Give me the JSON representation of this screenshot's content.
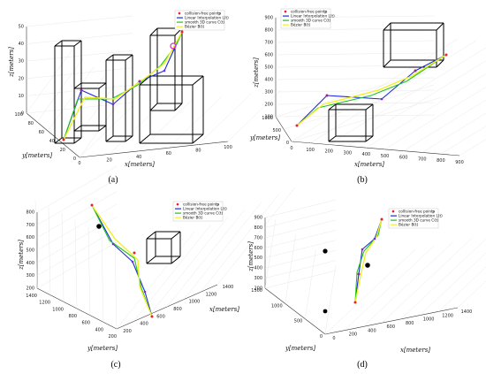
{
  "colors": {
    "points": "#e8222a",
    "linear": "#1f2bd6",
    "smooth": "#22c21f",
    "bezier": "#f0f02a",
    "obstacle": "#000000",
    "marker": "#e020e0"
  },
  "legend": {
    "entries": [
      "collision-free points",
      "Linear Interpolation L(t)",
      "smooth 3D curve C(t)",
      "Bézier B(t)"
    ],
    "extra": "p"
  },
  "chart_data": [
    {
      "type": "line",
      "caption": "(a)",
      "xlabel": "x[meters]",
      "ylabel": "y[meters]",
      "zlabel": "z[meters]",
      "xticks": [
        "0",
        "20",
        "40",
        "60",
        "80",
        "100"
      ],
      "yticks": [
        "0",
        "20",
        "40",
        "60",
        "80",
        "100"
      ],
      "zticks": [
        "0",
        "10",
        "20",
        "30",
        "40",
        "50"
      ],
      "grid": true,
      "legend_position": "top-right",
      "series": [
        {
          "name": "Linear Interpolation L(t)",
          "values": [
            [
              5,
              15,
              5
            ],
            [
              20,
              35,
              12
            ],
            [
              45,
              45,
              14
            ],
            [
              62,
              52,
              16
            ],
            [
              70,
              60,
              32
            ],
            [
              85,
              72,
              50
            ]
          ]
        },
        {
          "name": "smooth 3D curve C(t)",
          "values": [
            [
              5,
              15,
              5
            ],
            [
              18,
              32,
              12
            ],
            [
              42,
              44,
              15
            ],
            [
              60,
              50,
              22
            ],
            [
              72,
              62,
              38
            ],
            [
              85,
              72,
              50
            ]
          ]
        },
        {
          "name": "Bézier B(t)",
          "values": [
            [
              5,
              15,
              5
            ],
            [
              22,
              36,
              10
            ],
            [
              48,
              46,
              17
            ],
            [
              64,
              53,
              24
            ],
            [
              74,
              64,
              36
            ],
            [
              85,
              72,
              50
            ]
          ]
        }
      ]
    },
    {
      "type": "line",
      "caption": "(b)",
      "xlabel": "x[meters]",
      "ylabel": "y[meters]",
      "zlabel": "z[meters]",
      "xticks": [
        "0",
        "100",
        "200",
        "300",
        "400",
        "500",
        "600",
        "700",
        "800",
        "900"
      ],
      "yticks": [
        "0",
        "500",
        "1000"
      ],
      "zticks": [
        "100",
        "200",
        "300",
        "400",
        "500",
        "600",
        "700",
        "800",
        "900"
      ],
      "grid": true,
      "legend_position": "top-left",
      "series": [
        {
          "name": "Linear Interpolation L(t)",
          "values": [
            [
              50,
              100,
              150
            ],
            [
              220,
              300,
              420
            ],
            [
              480,
              480,
              430
            ],
            [
              650,
              520,
              520
            ],
            [
              820,
              650,
              760
            ]
          ]
        },
        {
          "name": "smooth 3D curve C(t)",
          "values": [
            [
              50,
              100,
              150
            ],
            [
              240,
              320,
              380
            ],
            [
              500,
              490,
              450
            ],
            [
              660,
              540,
              560
            ],
            [
              820,
              650,
              760
            ]
          ]
        },
        {
          "name": "Bézier B(t)",
          "values": [
            [
              50,
              100,
              150
            ],
            [
              260,
              340,
              360
            ],
            [
              520,
              500,
              470
            ],
            [
              670,
              560,
              580
            ],
            [
              820,
              650,
              760
            ]
          ]
        }
      ]
    },
    {
      "type": "line",
      "caption": "(c)",
      "xlabel": "x[meters]",
      "ylabel": "y[meters]",
      "zlabel": "z[meters]",
      "xticks": [
        "200",
        "400",
        "600",
        "800",
        "1000",
        "1200",
        "1400"
      ],
      "yticks": [
        "200",
        "400",
        "600",
        "800",
        "1000",
        "1200",
        "1400"
      ],
      "zticks": [
        "200",
        "300",
        "400",
        "500",
        "600",
        "700",
        "800"
      ],
      "grid": true,
      "legend_position": "top-right",
      "series": [
        {
          "name": "Linear Interpolation L(t)",
          "values": [
            [
              300,
              250,
              800
            ],
            [
              500,
              500,
              600
            ],
            [
              700,
              700,
              500
            ],
            [
              900,
              900,
              350
            ],
            [
              1100,
              1100,
              200
            ]
          ]
        },
        {
          "name": "smooth 3D curve C(t)",
          "values": [
            [
              300,
              250,
              800
            ],
            [
              520,
              520,
              580
            ],
            [
              720,
              720,
              470
            ],
            [
              920,
              920,
              330
            ],
            [
              1100,
              1100,
              200
            ]
          ]
        },
        {
          "name": "Bézier B(t)",
          "values": [
            [
              300,
              250,
              800
            ],
            [
              540,
              540,
              560
            ],
            [
              740,
              740,
              450
            ],
            [
              940,
              940,
              320
            ],
            [
              1100,
              1100,
              200
            ]
          ]
        }
      ]
    },
    {
      "type": "line",
      "caption": "(d)",
      "xlabel": "x[meters]",
      "ylabel": "y[meters]",
      "zlabel": "z[meters]",
      "xticks": [
        "0",
        "200",
        "400",
        "600",
        "800",
        "1000",
        "1200",
        "1400"
      ],
      "yticks": [
        "0",
        "500",
        "1000",
        "1500"
      ],
      "zticks": [
        "200",
        "300",
        "400",
        "500",
        "600",
        "700",
        "800",
        "900"
      ],
      "grid": true,
      "legend_position": "top-right",
      "series": [
        {
          "name": "Linear Interpolation L(t)",
          "values": [
            [
              700,
              700,
              200
            ],
            [
              720,
              720,
              450
            ],
            [
              760,
              760,
              600
            ],
            [
              820,
              820,
              750
            ],
            [
              900,
              900,
              880
            ]
          ]
        },
        {
          "name": "smooth 3D curve C(t)",
          "values": [
            [
              700,
              700,
              200
            ],
            [
              710,
              710,
              460
            ],
            [
              750,
              750,
              620
            ],
            [
              810,
              810,
              760
            ],
            [
              900,
              900,
              880
            ]
          ]
        },
        {
          "name": "Bézier B(t)",
          "values": [
            [
              700,
              700,
              200
            ],
            [
              730,
              730,
              470
            ],
            [
              770,
              770,
              630
            ],
            [
              830,
              830,
              770
            ],
            [
              900,
              900,
              880
            ]
          ]
        }
      ]
    }
  ]
}
